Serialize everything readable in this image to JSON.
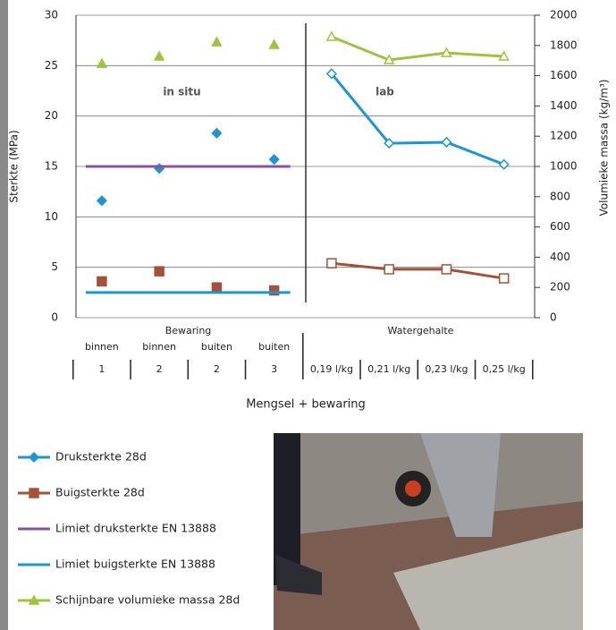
{
  "chart_data": {
    "type": "line",
    "y_label": "Sterkte (MPa)",
    "y2_label": "Volumieke massa (kg/m³)",
    "x_label": "Mengsel + bewaring",
    "groups": [
      {
        "name": "Bewaring",
        "annotation": "in situ",
        "connected": false,
        "filled": true
      },
      {
        "name": "Watergehalte",
        "annotation": "lab",
        "connected": true,
        "filled": false
      }
    ],
    "subcategories": [
      "binnen",
      "binnen",
      "buiten",
      "buiten",
      null,
      null,
      null,
      null
    ],
    "categories": [
      "1",
      "2",
      "2",
      "3",
      "0,19 l/kg",
      "0,21 l/kg",
      "0,23 l/kg",
      "0,25 l/kg"
    ],
    "ylim": [
      0,
      30
    ],
    "yticks": [
      0,
      5,
      10,
      15,
      20,
      25,
      30
    ],
    "y2lim": [
      0,
      2000
    ],
    "y2ticks": [
      0,
      200,
      400,
      600,
      800,
      1000,
      1200,
      1400,
      1600,
      1800,
      2000
    ],
    "grid": true,
    "legend": "bottom-left",
    "series": [
      {
        "name": "Druksterkte 28d",
        "color": "#1b96d3",
        "marker": "diamond",
        "values": [
          11.6,
          14.8,
          18.3,
          15.7,
          24.2,
          17.3,
          17.4,
          15.2
        ]
      },
      {
        "name": "Buigsterkte 28d",
        "color": "#a5513a",
        "marker": "square",
        "values": [
          3.6,
          4.6,
          3.0,
          2.7,
          5.4,
          4.8,
          4.8,
          3.9
        ]
      },
      {
        "name": "Limiet druksterkte EN 13888",
        "color": "#8a4fa6",
        "values": [
          15,
          15,
          15,
          15,
          null,
          null,
          null,
          null
        ]
      },
      {
        "name": "Limiet buigsterkte EN 13888",
        "color": "#1b96d3",
        "values": [
          2.5,
          2.5,
          2.5,
          2.5,
          null,
          null,
          null,
          null
        ]
      },
      {
        "name": "Schijnbare volumieke massa 28d",
        "color": "#9cc43c",
        "marker": "triangle",
        "axis": "y2",
        "values": [
          1680,
          1728,
          1822,
          1805,
          1858,
          1704,
          1751,
          1728
        ]
      }
    ]
  }
}
